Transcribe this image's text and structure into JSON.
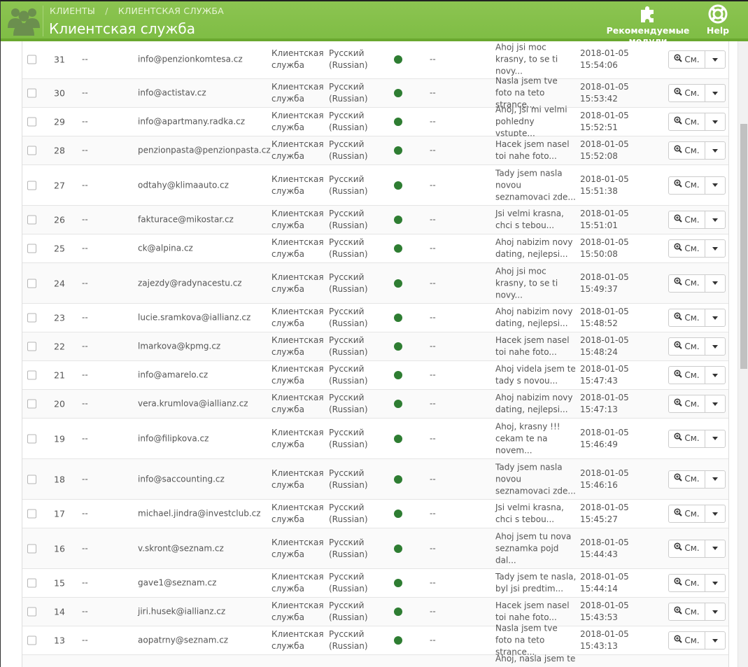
{
  "header": {
    "breadcrumb_parent": "КЛИЕНТЫ",
    "breadcrumb_separator": "/",
    "breadcrumb_current": "КЛИЕНТСКАЯ СЛУЖБА",
    "title": "Клиентская служба",
    "modules_label": "Рекомендуемые модули",
    "help_label": "Help",
    "logo_icon": "users-group-icon",
    "modules_icon": "puzzle-piece-icon",
    "help_icon": "lifebuoy-icon"
  },
  "colors": {
    "header_green": "#8cc451",
    "status_online": "#2e7d32"
  },
  "rows": [
    {
      "id": "",
      "contact": "",
      "email": "",
      "dept": "",
      "lang": "",
      "customer": "",
      "message": "...",
      "date": "",
      "time": ""
    },
    {
      "id": "31",
      "contact": "--",
      "email": "info@penzionkomtesa.cz",
      "dept": "Клиентская служба",
      "lang": "Русский (Russian)",
      "customer": "--",
      "message": "Ahoj jsi moc krasny, to se ti novy...",
      "date": "2018-01-05",
      "time": "15:54:06"
    },
    {
      "id": "30",
      "contact": "--",
      "email": "info@actistav.cz",
      "dept": "Клиентская служба",
      "lang": "Русский (Russian)",
      "customer": "--",
      "message": "Nasla jsem tve foto na teto strance...",
      "date": "2018-01-05",
      "time": "15:53:42"
    },
    {
      "id": "29",
      "contact": "--",
      "email": "info@apartmany.radka.cz",
      "dept": "Клиентская служба",
      "lang": "Русский (Russian)",
      "customer": "--",
      "message": "Ahoj, jsi mi velmi pohledny vstupte...",
      "date": "2018-01-05",
      "time": "15:52:51"
    },
    {
      "id": "28",
      "contact": "--",
      "email": "penzionpasta@penzionpasta.cz",
      "dept": "Клиентская служба",
      "lang": "Русский (Russian)",
      "customer": "--",
      "message": "Hacek jsem nasel toi nahe foto...",
      "date": "2018-01-05",
      "time": "15:52:08"
    },
    {
      "id": "27",
      "contact": "--",
      "email": "odtahy@klimaauto.cz",
      "dept": "Клиентская служба",
      "lang": "Русский (Russian)",
      "customer": "--",
      "message": "Tady jsem nasla novou seznamovaci zde...",
      "date": "2018-01-05",
      "time": "15:51:38"
    },
    {
      "id": "26",
      "contact": "--",
      "email": "fakturace@mikostar.cz",
      "dept": "Клиентская служба",
      "lang": "Русский (Russian)",
      "customer": "--",
      "message": "Jsi velmi krasna, chci s tebou...",
      "date": "2018-01-05",
      "time": "15:51:01"
    },
    {
      "id": "25",
      "contact": "--",
      "email": "ck@alpina.cz",
      "dept": "Клиентская служба",
      "lang": "Русский (Russian)",
      "customer": "--",
      "message": "Ahoj nabizim novy dating, nejlepsi...",
      "date": "2018-01-05",
      "time": "15:50:08"
    },
    {
      "id": "24",
      "contact": "--",
      "email": "zajezdy@radynacestu.cz",
      "dept": "Клиентская служба",
      "lang": "Русский (Russian)",
      "customer": "--",
      "message": "Ahoj jsi moc krasny, to se ti novy...",
      "date": "2018-01-05",
      "time": "15:49:37"
    },
    {
      "id": "23",
      "contact": "--",
      "email": "lucie.sramkova@iallianz.cz",
      "dept": "Клиентская служба",
      "lang": "Русский (Russian)",
      "customer": "--",
      "message": "Ahoj nabizim novy dating, nejlepsi...",
      "date": "2018-01-05",
      "time": "15:48:52"
    },
    {
      "id": "22",
      "contact": "--",
      "email": "lmarkova@kpmg.cz",
      "dept": "Клиентская служба",
      "lang": "Русский (Russian)",
      "customer": "--",
      "message": "Hacek jsem nasel toi nahe foto...",
      "date": "2018-01-05",
      "time": "15:48:24"
    },
    {
      "id": "21",
      "contact": "--",
      "email": "info@amarelo.cz",
      "dept": "Клиентская служба",
      "lang": "Русский (Russian)",
      "customer": "--",
      "message": "Ahoj videla jsem te tady s novou...",
      "date": "2018-01-05",
      "time": "15:47:43"
    },
    {
      "id": "20",
      "contact": "--",
      "email": "vera.krumlova@iallianz.cz",
      "dept": "Клиентская служба",
      "lang": "Русский (Russian)",
      "customer": "--",
      "message": "Ahoj nabizim novy dating, nejlepsi...",
      "date": "2018-01-05",
      "time": "15:47:13"
    },
    {
      "id": "19",
      "contact": "--",
      "email": "info@filipkova.cz",
      "dept": "Клиентская служба",
      "lang": "Русский (Russian)",
      "customer": "--",
      "message": "Ahoj, krasny !!! cekam te na novem...",
      "date": "2018-01-05",
      "time": "15:46:49"
    },
    {
      "id": "18",
      "contact": "--",
      "email": "info@saccounting.cz",
      "dept": "Клиентская служба",
      "lang": "Русский (Russian)",
      "customer": "--",
      "message": "Tady jsem nasla novou seznamovaci zde...",
      "date": "2018-01-05",
      "time": "15:46:16"
    },
    {
      "id": "17",
      "contact": "--",
      "email": "michael.jindra@investclub.cz",
      "dept": "Клиентская служба",
      "lang": "Русский (Russian)",
      "customer": "--",
      "message": "Jsi velmi krasna, chci s tebou...",
      "date": "2018-01-05",
      "time": "15:45:27"
    },
    {
      "id": "16",
      "contact": "--",
      "email": "v.skront@seznam.cz",
      "dept": "Клиентская служба",
      "lang": "Русский (Russian)",
      "customer": "--",
      "message": "Ahoj jsem tu nova seznamka pojd dal...",
      "date": "2018-01-05",
      "time": "15:44:43"
    },
    {
      "id": "15",
      "contact": "--",
      "email": "gave1@seznam.cz",
      "dept": "Клиентская служба",
      "lang": "Русский (Russian)",
      "customer": "--",
      "message": "Tady jsem te nasla, byl jsi predtim...",
      "date": "2018-01-05",
      "time": "15:44:14"
    },
    {
      "id": "14",
      "contact": "--",
      "email": "jiri.husek@iallianz.cz",
      "dept": "Клиентская служба",
      "lang": "Русский (Russian)",
      "customer": "--",
      "message": "Hacek jsem nasel toi nahe foto...",
      "date": "2018-01-05",
      "time": "15:43:53"
    },
    {
      "id": "13",
      "contact": "--",
      "email": "aopatrny@seznam.cz",
      "dept": "Клиентская служба",
      "lang": "Русский (Russian)",
      "customer": "--",
      "message": "Nasla jsem tve foto na teto strance...",
      "date": "2018-01-05",
      "time": "15:43:13"
    },
    {
      "id": "",
      "contact": "",
      "email": "",
      "dept": "",
      "lang": "",
      "customer": "",
      "message": "Ahoj, nasla jsem te",
      "date": "",
      "time": ""
    }
  ],
  "view_label": "См."
}
